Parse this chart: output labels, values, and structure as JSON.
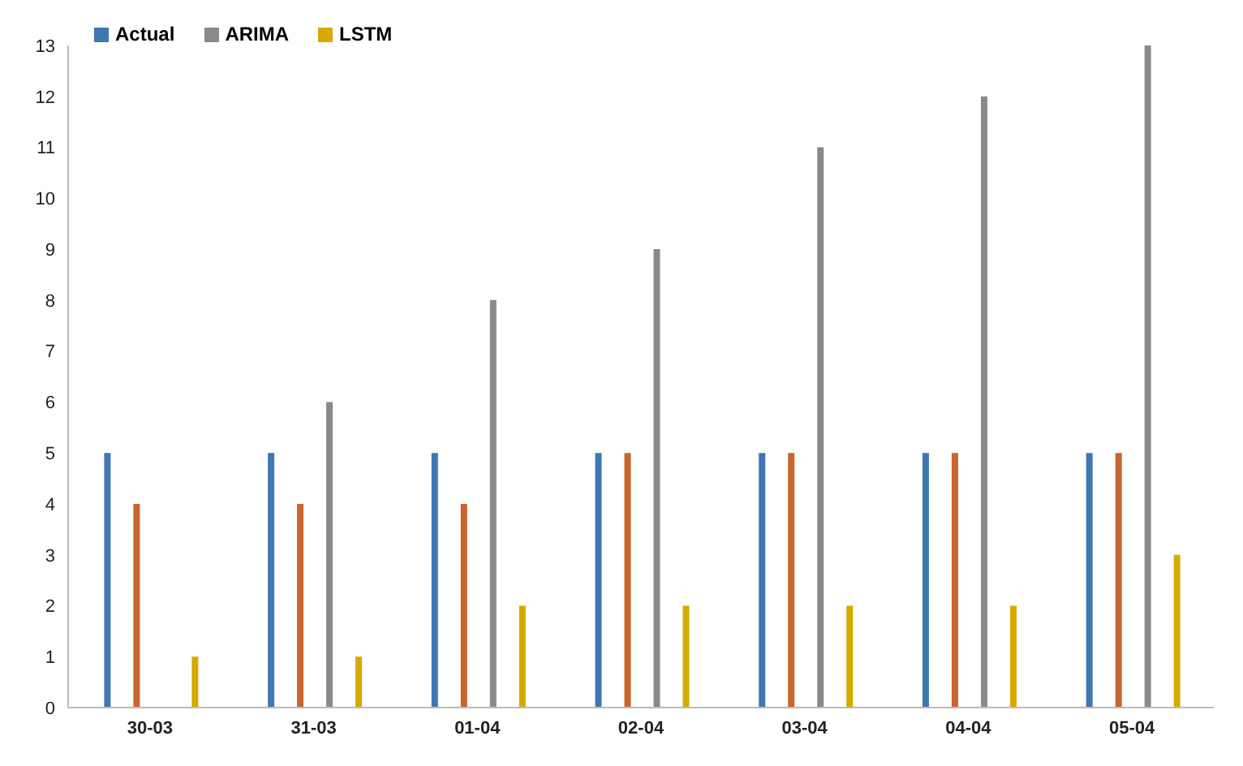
{
  "chart_data": {
    "type": "bar",
    "categories": [
      "30-03",
      "31-03",
      "01-04",
      "02-04",
      "03-04",
      "04-04",
      "05-04"
    ],
    "series": [
      {
        "name": "Actual",
        "color": "#3f77b3",
        "values": [
          5,
          5,
          5,
          5,
          5,
          5,
          5
        ]
      },
      {
        "color": "#c8662c",
        "values": [
          4,
          4,
          4,
          5,
          5,
          5,
          5
        ]
      },
      {
        "name": "ARIMA",
        "color": "#8a8a8a",
        "values": [
          0,
          6,
          8,
          9,
          11,
          12,
          13
        ]
      },
      {
        "name": "LSTM",
        "color": "#d6aa00",
        "values": [
          1,
          1,
          2,
          2,
          2,
          2,
          3
        ]
      }
    ],
    "ylim": [
      0,
      13
    ],
    "yticks": [
      0,
      1,
      2,
      3,
      4,
      5,
      6,
      7,
      8,
      9,
      10,
      11,
      12,
      13
    ],
    "grid": false,
    "legend": "top left"
  }
}
